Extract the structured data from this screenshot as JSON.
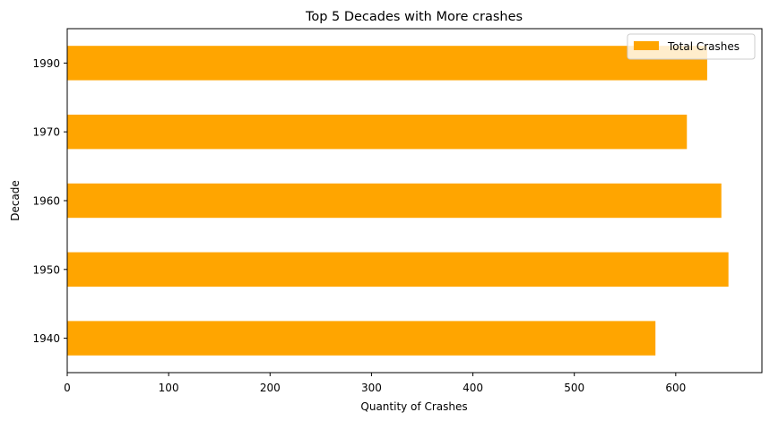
{
  "chart_data": {
    "type": "bar",
    "orientation": "horizontal",
    "title": "Top 5 Decades with More crashes",
    "xlabel": "Quantity of Crashes",
    "ylabel": "Decade",
    "categories": [
      "1940",
      "1950",
      "1960",
      "1970",
      "1990"
    ],
    "series": [
      {
        "name": "Total Crashes",
        "values": [
          580,
          652,
          645,
          611,
          631
        ],
        "color": "#ffa500"
      }
    ],
    "xlim": [
      0,
      685
    ],
    "xticks": [
      "0",
      "100",
      "200",
      "300",
      "400",
      "500",
      "600"
    ],
    "grid": false,
    "legend_position": "top-right"
  }
}
